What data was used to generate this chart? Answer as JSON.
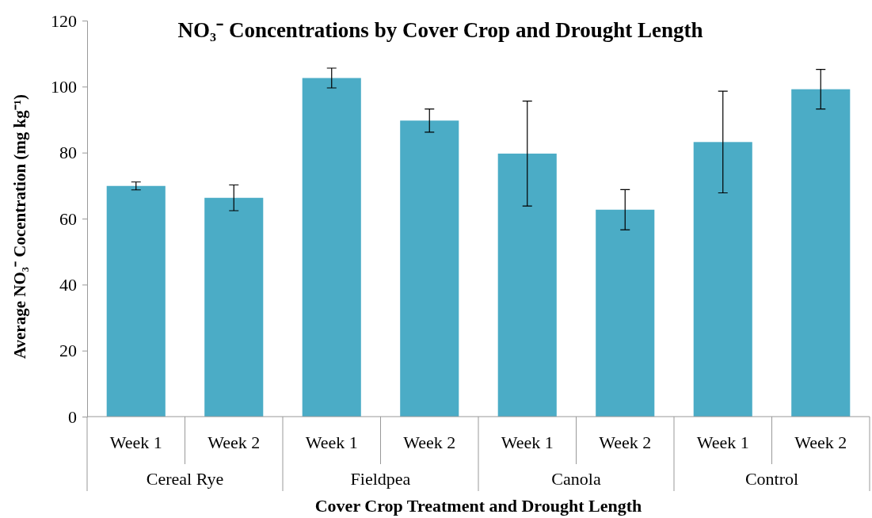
{
  "chart_data": {
    "type": "bar",
    "title": "NO₃⁻ Concentrations by Cover Crop and Drought Length",
    "xlabel": "Cover Crop Treatment and Drought Length",
    "ylabel": "Average NO₃⁻ Cocentration (mg kg⁻¹)",
    "categories": [
      "Week 1",
      "Week 2",
      "Week 1",
      "Week 2",
      "Week 1",
      "Week 2",
      "Week 1",
      "Week 2"
    ],
    "annotations": [
      "Cereal Rye",
      "Fieldpea",
      "Canola",
      "Control"
    ],
    "values": [
      69.9,
      66.3,
      102.6,
      89.7,
      79.7,
      62.7,
      83.2,
      99.2
    ],
    "errors": [
      1.2,
      3.9,
      3,
      3.5,
      15.9,
      6.1,
      15.4,
      6
    ],
    "color": "#4bacc6",
    "ylim": [
      0,
      120
    ],
    "yticks": [
      0,
      20,
      40,
      60,
      80,
      100,
      120
    ],
    "grid": false
  }
}
